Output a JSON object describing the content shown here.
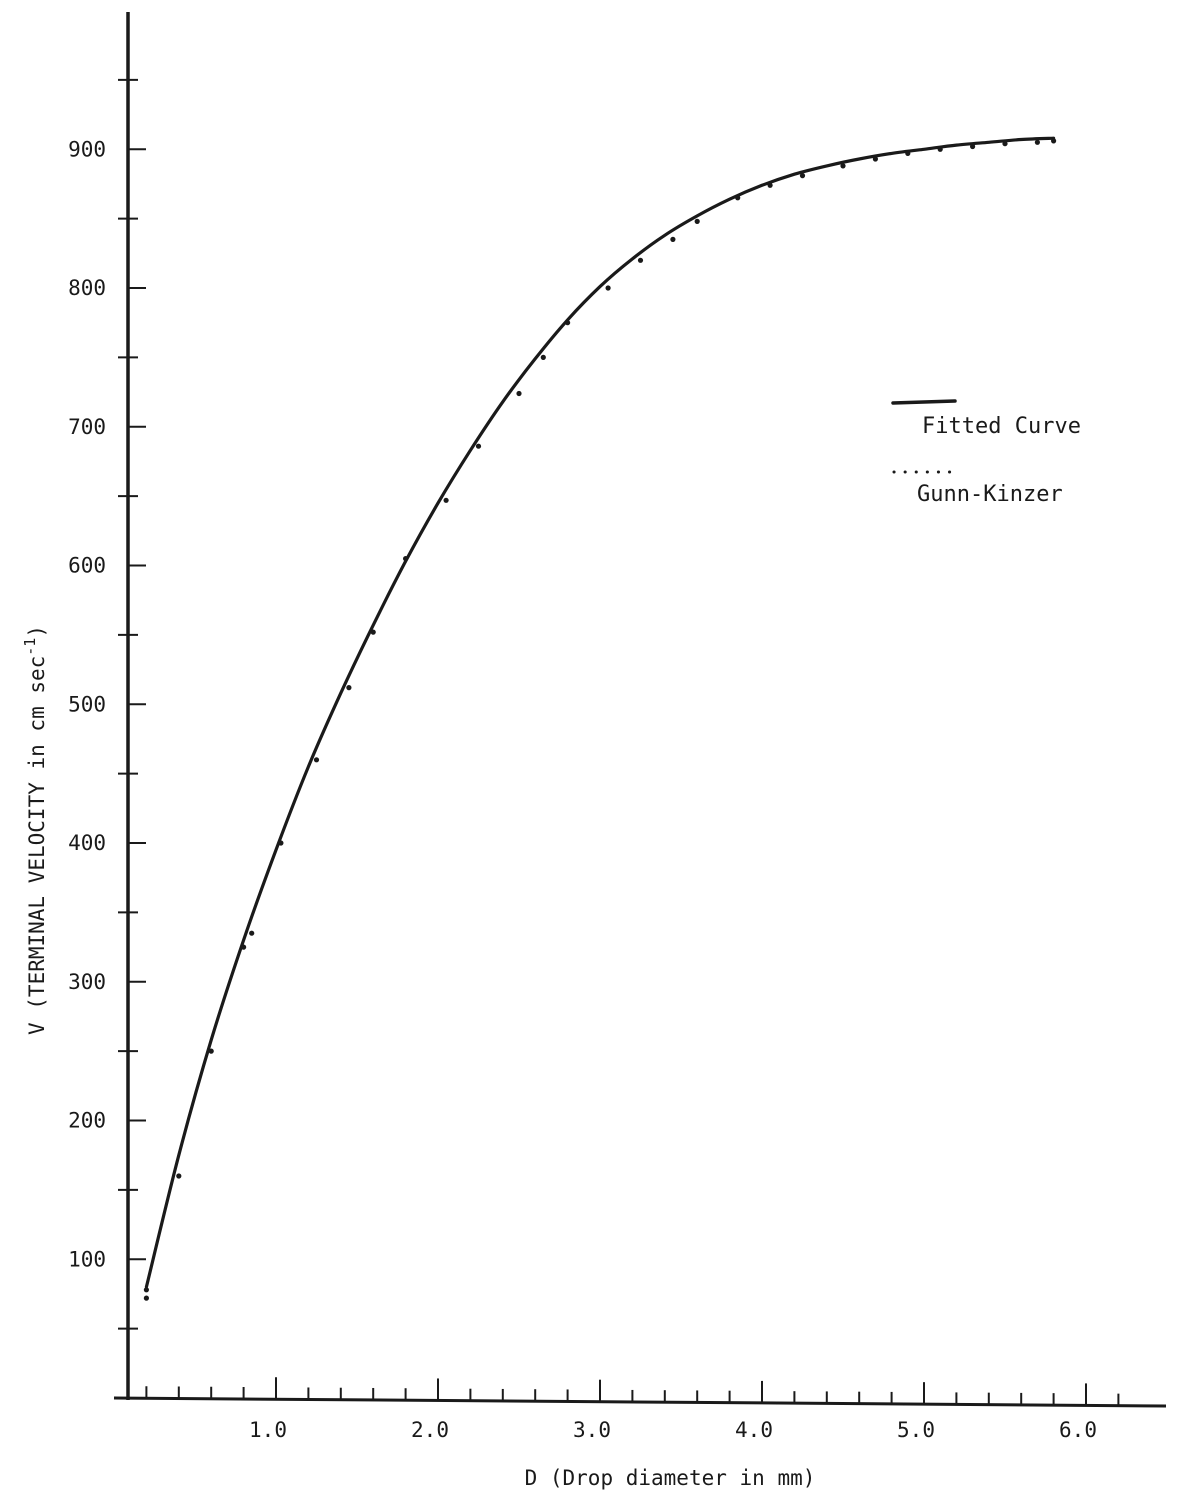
{
  "chart_data": {
    "type": "line",
    "title": "",
    "xlabel": "D (Drop diameter in mm)",
    "ylabel": "V (TERMINAL VELOCITY in cm sec",
    "ylabel_superscript": "-1",
    "ylabel_close": ")",
    "xlim": [
      0,
      6.5
    ],
    "ylim": [
      0,
      980
    ],
    "x_ticks": [
      1.0,
      2.0,
      3.0,
      4.0,
      5.0,
      6.0
    ],
    "x_tick_labels": [
      "1.0",
      "2.0",
      "3.0",
      "4.0",
      "5.0",
      "6.0"
    ],
    "y_ticks": [
      100,
      200,
      300,
      400,
      500,
      600,
      700,
      800,
      900
    ],
    "y_tick_labels": [
      "100",
      "200",
      "300",
      "400",
      "500",
      "600",
      "700",
      "800",
      "900"
    ],
    "grid": false,
    "legend_position": "right",
    "series": [
      {
        "name": "Fitted Curve",
        "style": "solid",
        "x": [
          0.2,
          0.4,
          0.6,
          0.8,
          1.0,
          1.2,
          1.4,
          1.6,
          1.8,
          2.0,
          2.2,
          2.4,
          2.6,
          2.8,
          3.0,
          3.2,
          3.4,
          3.6,
          3.8,
          4.0,
          4.2,
          4.4,
          4.6,
          4.8,
          5.0,
          5.2,
          5.4,
          5.6,
          5.8
        ],
        "y": [
          80,
          175,
          258,
          330,
          395,
          455,
          508,
          557,
          603,
          645,
          683,
          718,
          749,
          777,
          801,
          821,
          838,
          852,
          864,
          874,
          882,
          888,
          893,
          897,
          900,
          903,
          905,
          907,
          908
        ]
      },
      {
        "name": "Gunn-Kinzer",
        "style": "dotted",
        "x": [
          0.2,
          0.2,
          0.4,
          0.6,
          0.8,
          0.85,
          1.03,
          1.25,
          1.45,
          1.6,
          1.8,
          2.05,
          2.25,
          2.5,
          2.65,
          2.8,
          3.05,
          3.25,
          3.45,
          3.6,
          3.85,
          4.05,
          4.25,
          4.5,
          4.7,
          4.9,
          5.1,
          5.3,
          5.5,
          5.7,
          5.8
        ],
        "y": [
          72,
          78,
          160,
          250,
          325,
          335,
          400,
          460,
          512,
          552,
          605,
          647,
          686,
          724,
          750,
          775,
          800,
          820,
          835,
          848,
          865,
          874,
          881,
          888,
          893,
          897,
          900,
          902,
          904,
          905,
          906
        ]
      }
    ]
  },
  "colors": {
    "ink": "#1a1a1a",
    "background": "#ffffff"
  }
}
